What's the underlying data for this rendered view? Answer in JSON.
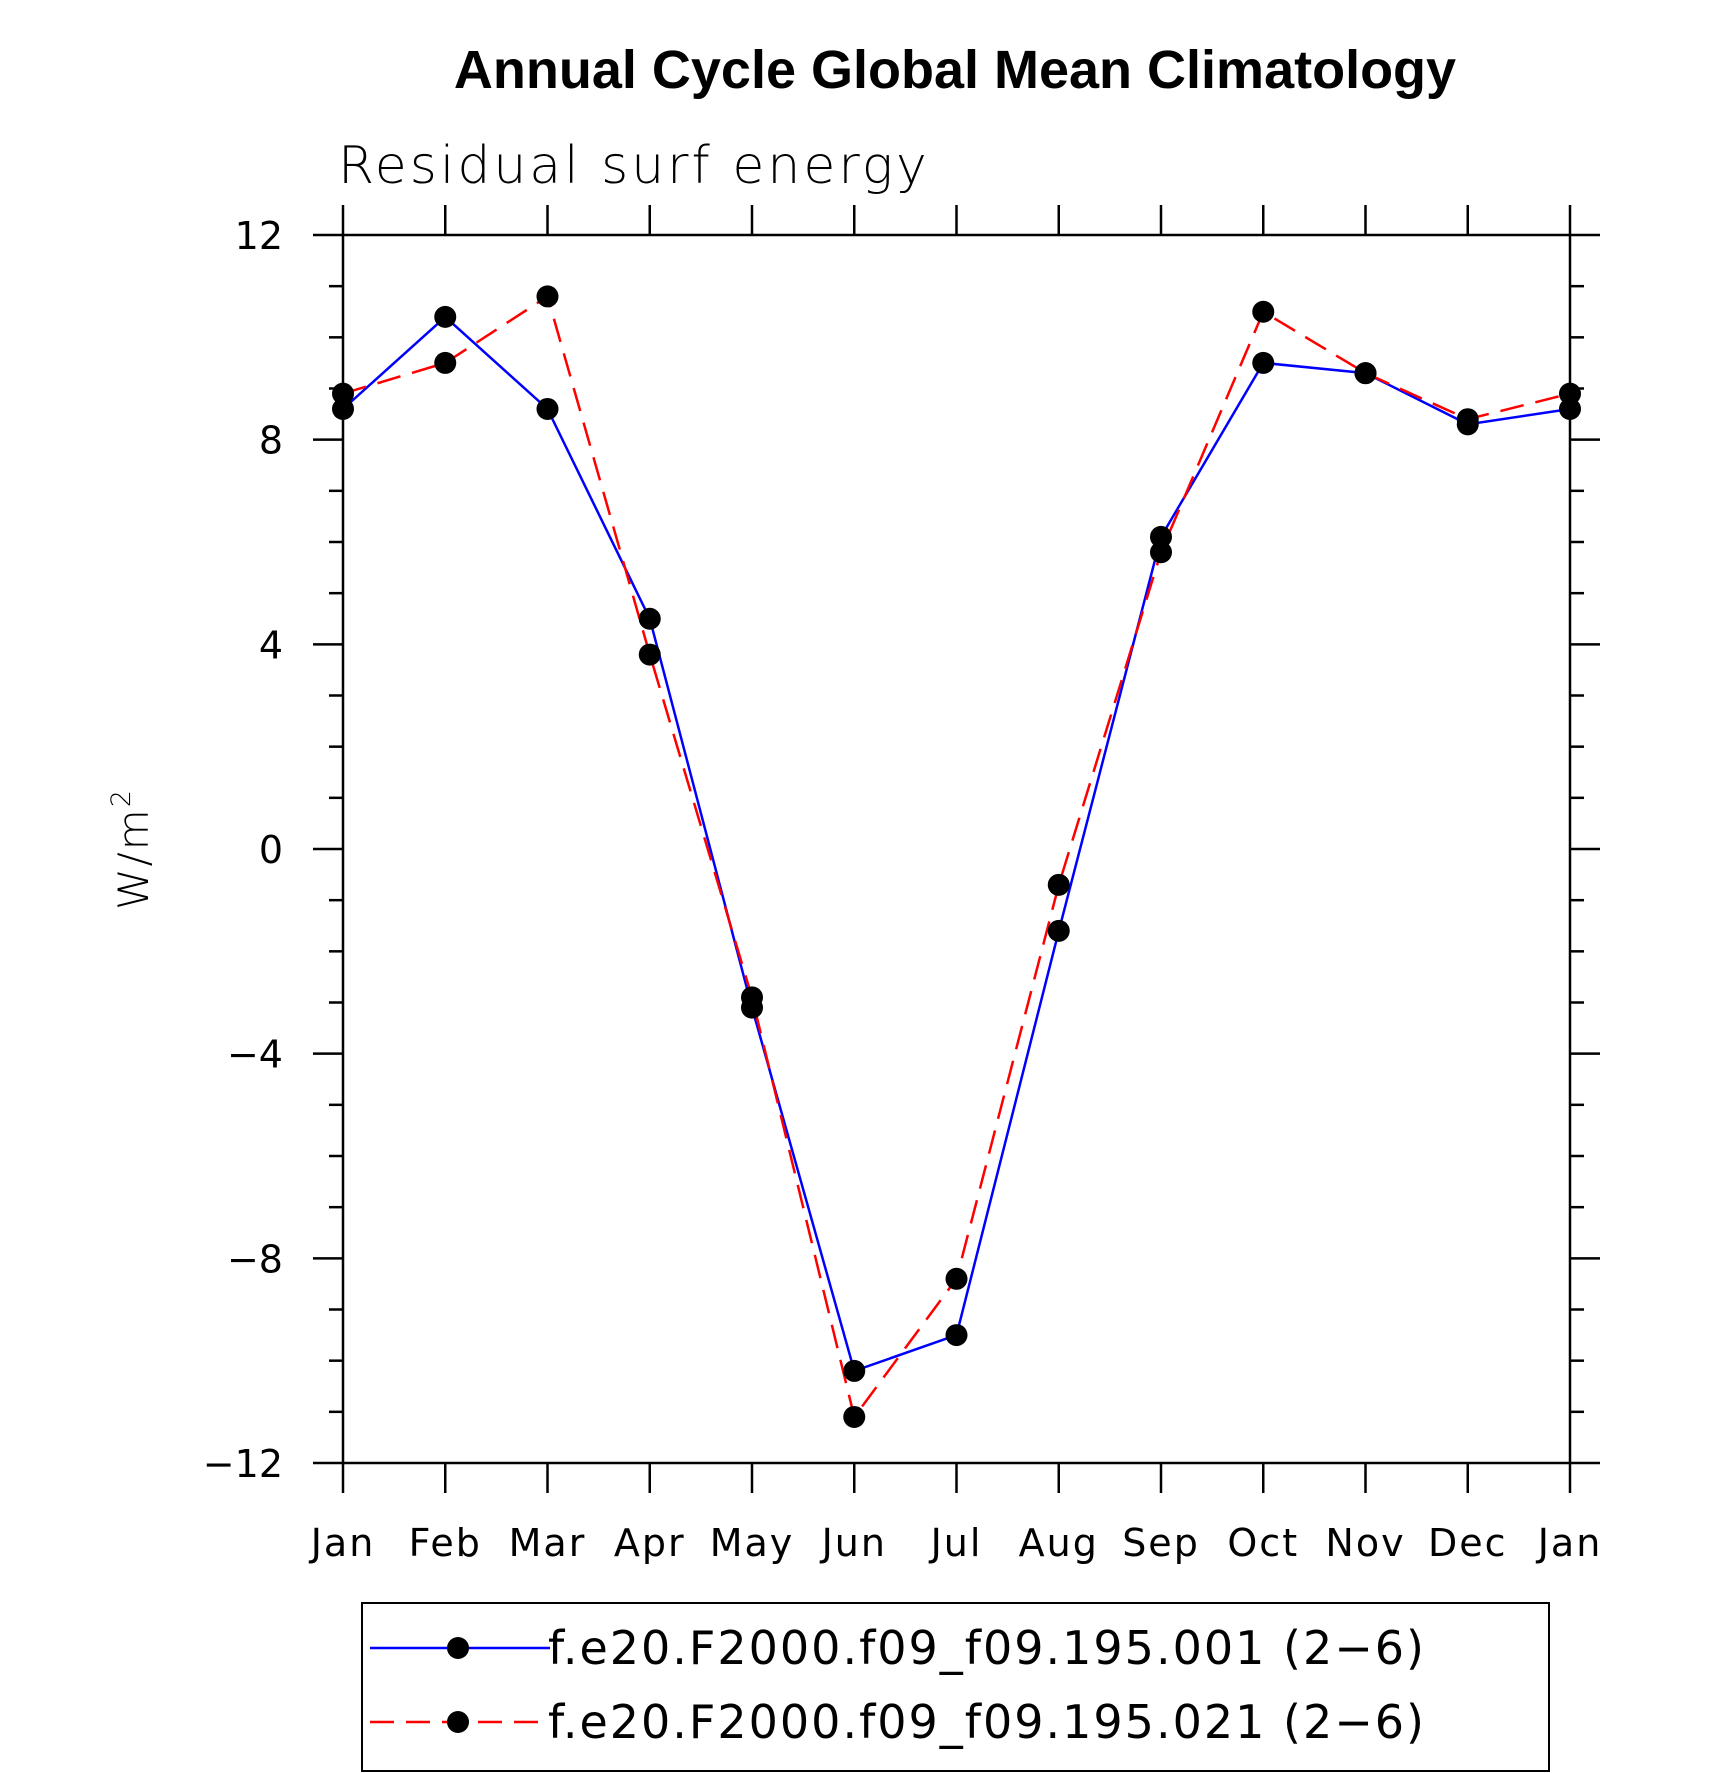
{
  "chart_data": {
    "type": "line",
    "title": "Annual Cycle Global Mean Climatology",
    "subtitle": "Residual surf energy",
    "ylabel": "W/m",
    "ylabel_superscript": "2",
    "xlabel": "",
    "categories": [
      "Jan",
      "Feb",
      "Mar",
      "Apr",
      "May",
      "Jun",
      "Jul",
      "Aug",
      "Sep",
      "Oct",
      "Nov",
      "Dec",
      "Jan"
    ],
    "ylim": [
      -12,
      12
    ],
    "yticks": [
      12,
      8,
      4,
      0,
      -4,
      -8,
      -12
    ],
    "ytick_labels": [
      "12",
      "8",
      "4",
      "0",
      "−4",
      "−8",
      "−12"
    ],
    "grid": false,
    "legend_position": "bottom",
    "series": [
      {
        "name": "f.e20.F2000.f09_f09.195.001 (2−6)",
        "color": "#0000ff",
        "line_style": "solid",
        "marker": "filled-circle",
        "values": [
          8.6,
          10.4,
          8.6,
          4.5,
          -3.1,
          -10.2,
          -9.5,
          -1.6,
          6.1,
          9.5,
          9.3,
          8.3,
          8.6
        ]
      },
      {
        "name": "f.e20.F2000.f09_f09.195.021 (2−6)",
        "color": "#ff0000",
        "line_style": "dashed",
        "marker": "filled-circle",
        "values": [
          8.9,
          9.5,
          10.8,
          3.8,
          -2.9,
          -11.1,
          -8.4,
          -0.7,
          5.8,
          10.5,
          9.3,
          8.4,
          8.9
        ]
      }
    ]
  }
}
